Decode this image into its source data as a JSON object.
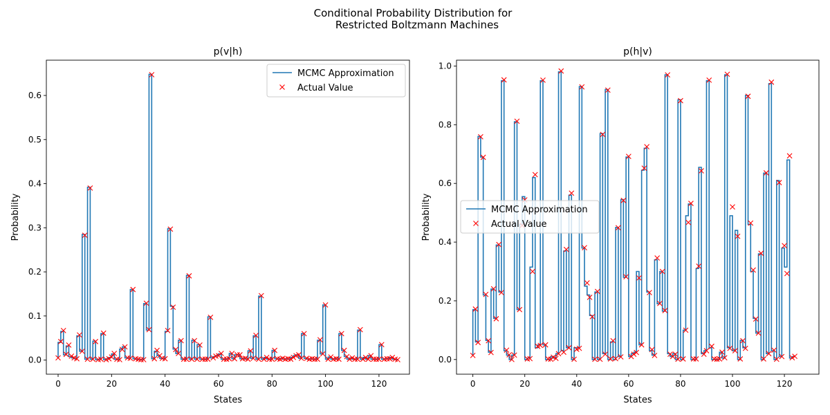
{
  "suptitle": [
    "Conditional Probability Distribution for",
    "Restricted Boltzmann Machines"
  ],
  "colors": {
    "mcmc": "#1f77b4",
    "actual": "#ff0000"
  },
  "chart_data": [
    {
      "type": "line",
      "title": "p(v|h)",
      "xlabel": "States",
      "ylabel": "Probability",
      "xlim": [
        -4.4,
        131.4
      ],
      "ylim": [
        -0.032,
        0.68
      ],
      "xticks": [
        0,
        20,
        40,
        60,
        80,
        100,
        120
      ],
      "yticks": [
        0.0,
        0.1,
        0.2,
        0.3,
        0.4,
        0.5,
        0.6
      ],
      "ytick_decimals": 1,
      "legend": {
        "position": "upper-right",
        "entries": [
          "MCMC Approximation",
          "Actual Value"
        ]
      },
      "series": [
        {
          "name": "MCMC Approximation",
          "style": "step",
          "values": [
            0.004,
            0.04,
            0.065,
            0.012,
            0.032,
            0.008,
            0.005,
            0.003,
            0.055,
            0.02,
            0.285,
            0.002,
            0.392,
            0.002,
            0.043,
            0.001,
            0.002,
            0.06,
            0.001,
            0.003,
            0.006,
            0.014,
            0.002,
            0.001,
            0.025,
            0.03,
            0.005,
            0.004,
            0.16,
            0.003,
            0.002,
            0.001,
            0.001,
            0.128,
            0.068,
            0.648,
            0.003,
            0.02,
            0.01,
            0.004,
            0.003,
            0.065,
            0.298,
            0.122,
            0.025,
            0.015,
            0.045,
            0.002,
            0.002,
            0.192,
            0.002,
            0.045,
            0.002,
            0.035,
            0.002,
            0.002,
            0.002,
            0.098,
            0.005,
            0.008,
            0.01,
            0.014,
            0.002,
            0.002,
            0.003,
            0.015,
            0.003,
            0.012,
            0.012,
            0.003,
            0.004,
            0.002,
            0.021,
            0.004,
            0.055,
            0.002,
            0.145,
            0.002,
            0.006,
            0.002,
            0.002,
            0.022,
            0.003,
            0.002,
            0.004,
            0.002,
            0.003,
            0.002,
            0.006,
            0.01,
            0.012,
            0.004,
            0.06,
            0.004,
            0.002,
            0.003,
            0.002,
            0.002,
            0.045,
            0.014,
            0.125,
            0.002,
            0.007,
            0.002,
            0.003,
            0.002,
            0.06,
            0.022,
            0.008,
            0.002,
            0.005,
            0.002,
            0.002,
            0.068,
            0.002,
            0.006,
            0.002,
            0.01,
            0.002,
            0.002,
            0.002,
            0.035,
            0.002,
            0.003,
            0.003,
            0.006,
            0.002,
            0.001
          ]
        },
        {
          "name": "Actual Value",
          "style": "marker-x",
          "values": [
            0.005,
            0.042,
            0.067,
            0.013,
            0.034,
            0.009,
            0.005,
            0.003,
            0.057,
            0.02,
            0.283,
            0.002,
            0.39,
            0.002,
            0.042,
            0.001,
            0.002,
            0.061,
            0.001,
            0.003,
            0.007,
            0.015,
            0.002,
            0.001,
            0.024,
            0.03,
            0.005,
            0.004,
            0.16,
            0.003,
            0.002,
            0.001,
            0.001,
            0.129,
            0.069,
            0.647,
            0.003,
            0.022,
            0.01,
            0.004,
            0.003,
            0.067,
            0.297,
            0.12,
            0.024,
            0.015,
            0.044,
            0.002,
            0.002,
            0.191,
            0.002,
            0.044,
            0.002,
            0.034,
            0.002,
            0.002,
            0.002,
            0.097,
            0.005,
            0.009,
            0.01,
            0.015,
            0.002,
            0.002,
            0.003,
            0.015,
            0.003,
            0.012,
            0.012,
            0.003,
            0.004,
            0.002,
            0.021,
            0.004,
            0.056,
            0.002,
            0.146,
            0.002,
            0.006,
            0.002,
            0.002,
            0.022,
            0.003,
            0.002,
            0.004,
            0.002,
            0.003,
            0.002,
            0.006,
            0.01,
            0.012,
            0.004,
            0.06,
            0.004,
            0.002,
            0.003,
            0.002,
            0.002,
            0.046,
            0.014,
            0.125,
            0.002,
            0.007,
            0.002,
            0.003,
            0.002,
            0.06,
            0.022,
            0.008,
            0.002,
            0.005,
            0.002,
            0.002,
            0.069,
            0.002,
            0.006,
            0.002,
            0.01,
            0.002,
            0.002,
            0.002,
            0.035,
            0.002,
            0.003,
            0.003,
            0.006,
            0.002,
            0.001
          ]
        }
      ]
    },
    {
      "type": "line",
      "title": "p(h|v)",
      "xlabel": "States",
      "ylabel": "Probability",
      "xlim": [
        -6.3,
        133.3
      ],
      "ylim": [
        -0.05,
        1.02
      ],
      "xticks": [
        0,
        20,
        40,
        60,
        80,
        100,
        120
      ],
      "yticks": [
        0.0,
        0.2,
        0.4,
        0.6,
        0.8,
        1.0
      ],
      "ytick_decimals": 1,
      "legend": {
        "position": "center-left",
        "entries": [
          "MCMC Approximation",
          "Actual Value"
        ]
      },
      "series": [
        {
          "name": "MCMC Approximation",
          "style": "step",
          "values": [
            0.015,
            0.17,
            0.06,
            0.76,
            0.69,
            0.22,
            0.065,
            0.025,
            0.24,
            0.14,
            0.39,
            0.23,
            0.95,
            0.03,
            0.015,
            0.0,
            0.015,
            0.81,
            0.17,
            0.46,
            0.555,
            0.0,
            0.005,
            0.315,
            0.62,
            0.04,
            0.05,
            0.95,
            0.05,
            0.0,
            0.0,
            0.01,
            0.005,
            0.02,
            0.98,
            0.03,
            0.37,
            0.04,
            0.56,
            0.0,
            0.04,
            0.04,
            0.93,
            0.38,
            0.25,
            0.22,
            0.15,
            0.0,
            0.23,
            0.0,
            0.77,
            0.02,
            0.92,
            0.0,
            0.06,
            0.0,
            0.45,
            0.01,
            0.545,
            0.28,
            0.69,
            0.01,
            0.02,
            0.025,
            0.3,
            0.05,
            0.645,
            0.72,
            0.23,
            0.03,
            0.015,
            0.34,
            0.19,
            0.3,
            0.165,
            0.97,
            0.02,
            0.01,
            0.02,
            0.0,
            0.885,
            0.0,
            0.1,
            0.49,
            0.53,
            0.0,
            0.0,
            0.31,
            0.655,
            0.02,
            0.03,
            0.95,
            0.04,
            0.0,
            0.0,
            0.0,
            0.025,
            0.005,
            0.97,
            0.04,
            0.49,
            0.03,
            0.44,
            0.0,
            0.065,
            0.04,
            0.9,
            0.46,
            0.3,
            0.14,
            0.09,
            0.36,
            0.0,
            0.635,
            0.02,
            0.94,
            0.03,
            0.0,
            0.61,
            0.01,
            0.38,
            0.315,
            0.68,
            0.005,
            0.01
          ]
        },
        {
          "name": "Actual Value",
          "style": "marker-x",
          "values": [
            0.014,
            0.172,
            0.058,
            0.759,
            0.689,
            0.222,
            0.064,
            0.024,
            0.241,
            0.139,
            0.392,
            0.228,
            0.953,
            0.032,
            0.016,
            0.0,
            0.015,
            0.812,
            0.17,
            0.457,
            0.544,
            0.002,
            0.003,
            0.3,
            0.63,
            0.045,
            0.048,
            0.952,
            0.05,
            0.002,
            0.001,
            0.008,
            0.004,
            0.02,
            0.983,
            0.025,
            0.375,
            0.04,
            0.567,
            0.001,
            0.035,
            0.038,
            0.929,
            0.381,
            0.261,
            0.212,
            0.146,
            0.001,
            0.232,
            0.001,
            0.767,
            0.018,
            0.918,
            0.002,
            0.064,
            0.003,
            0.449,
            0.009,
            0.542,
            0.282,
            0.692,
            0.01,
            0.018,
            0.024,
            0.278,
            0.05,
            0.652,
            0.725,
            0.228,
            0.034,
            0.014,
            0.346,
            0.191,
            0.3,
            0.167,
            0.97,
            0.018,
            0.01,
            0.018,
            0.001,
            0.882,
            0.002,
            0.1,
            0.467,
            0.532,
            0.002,
            0.002,
            0.318,
            0.643,
            0.018,
            0.03,
            0.952,
            0.045,
            0.002,
            0.001,
            0.002,
            0.025,
            0.006,
            0.972,
            0.038,
            0.52,
            0.03,
            0.42,
            0.002,
            0.064,
            0.038,
            0.897,
            0.465,
            0.305,
            0.138,
            0.09,
            0.362,
            0.002,
            0.636,
            0.02,
            0.945,
            0.032,
            0.001,
            0.603,
            0.01,
            0.388,
            0.293,
            0.694,
            0.006,
            0.011
          ]
        }
      ]
    }
  ]
}
